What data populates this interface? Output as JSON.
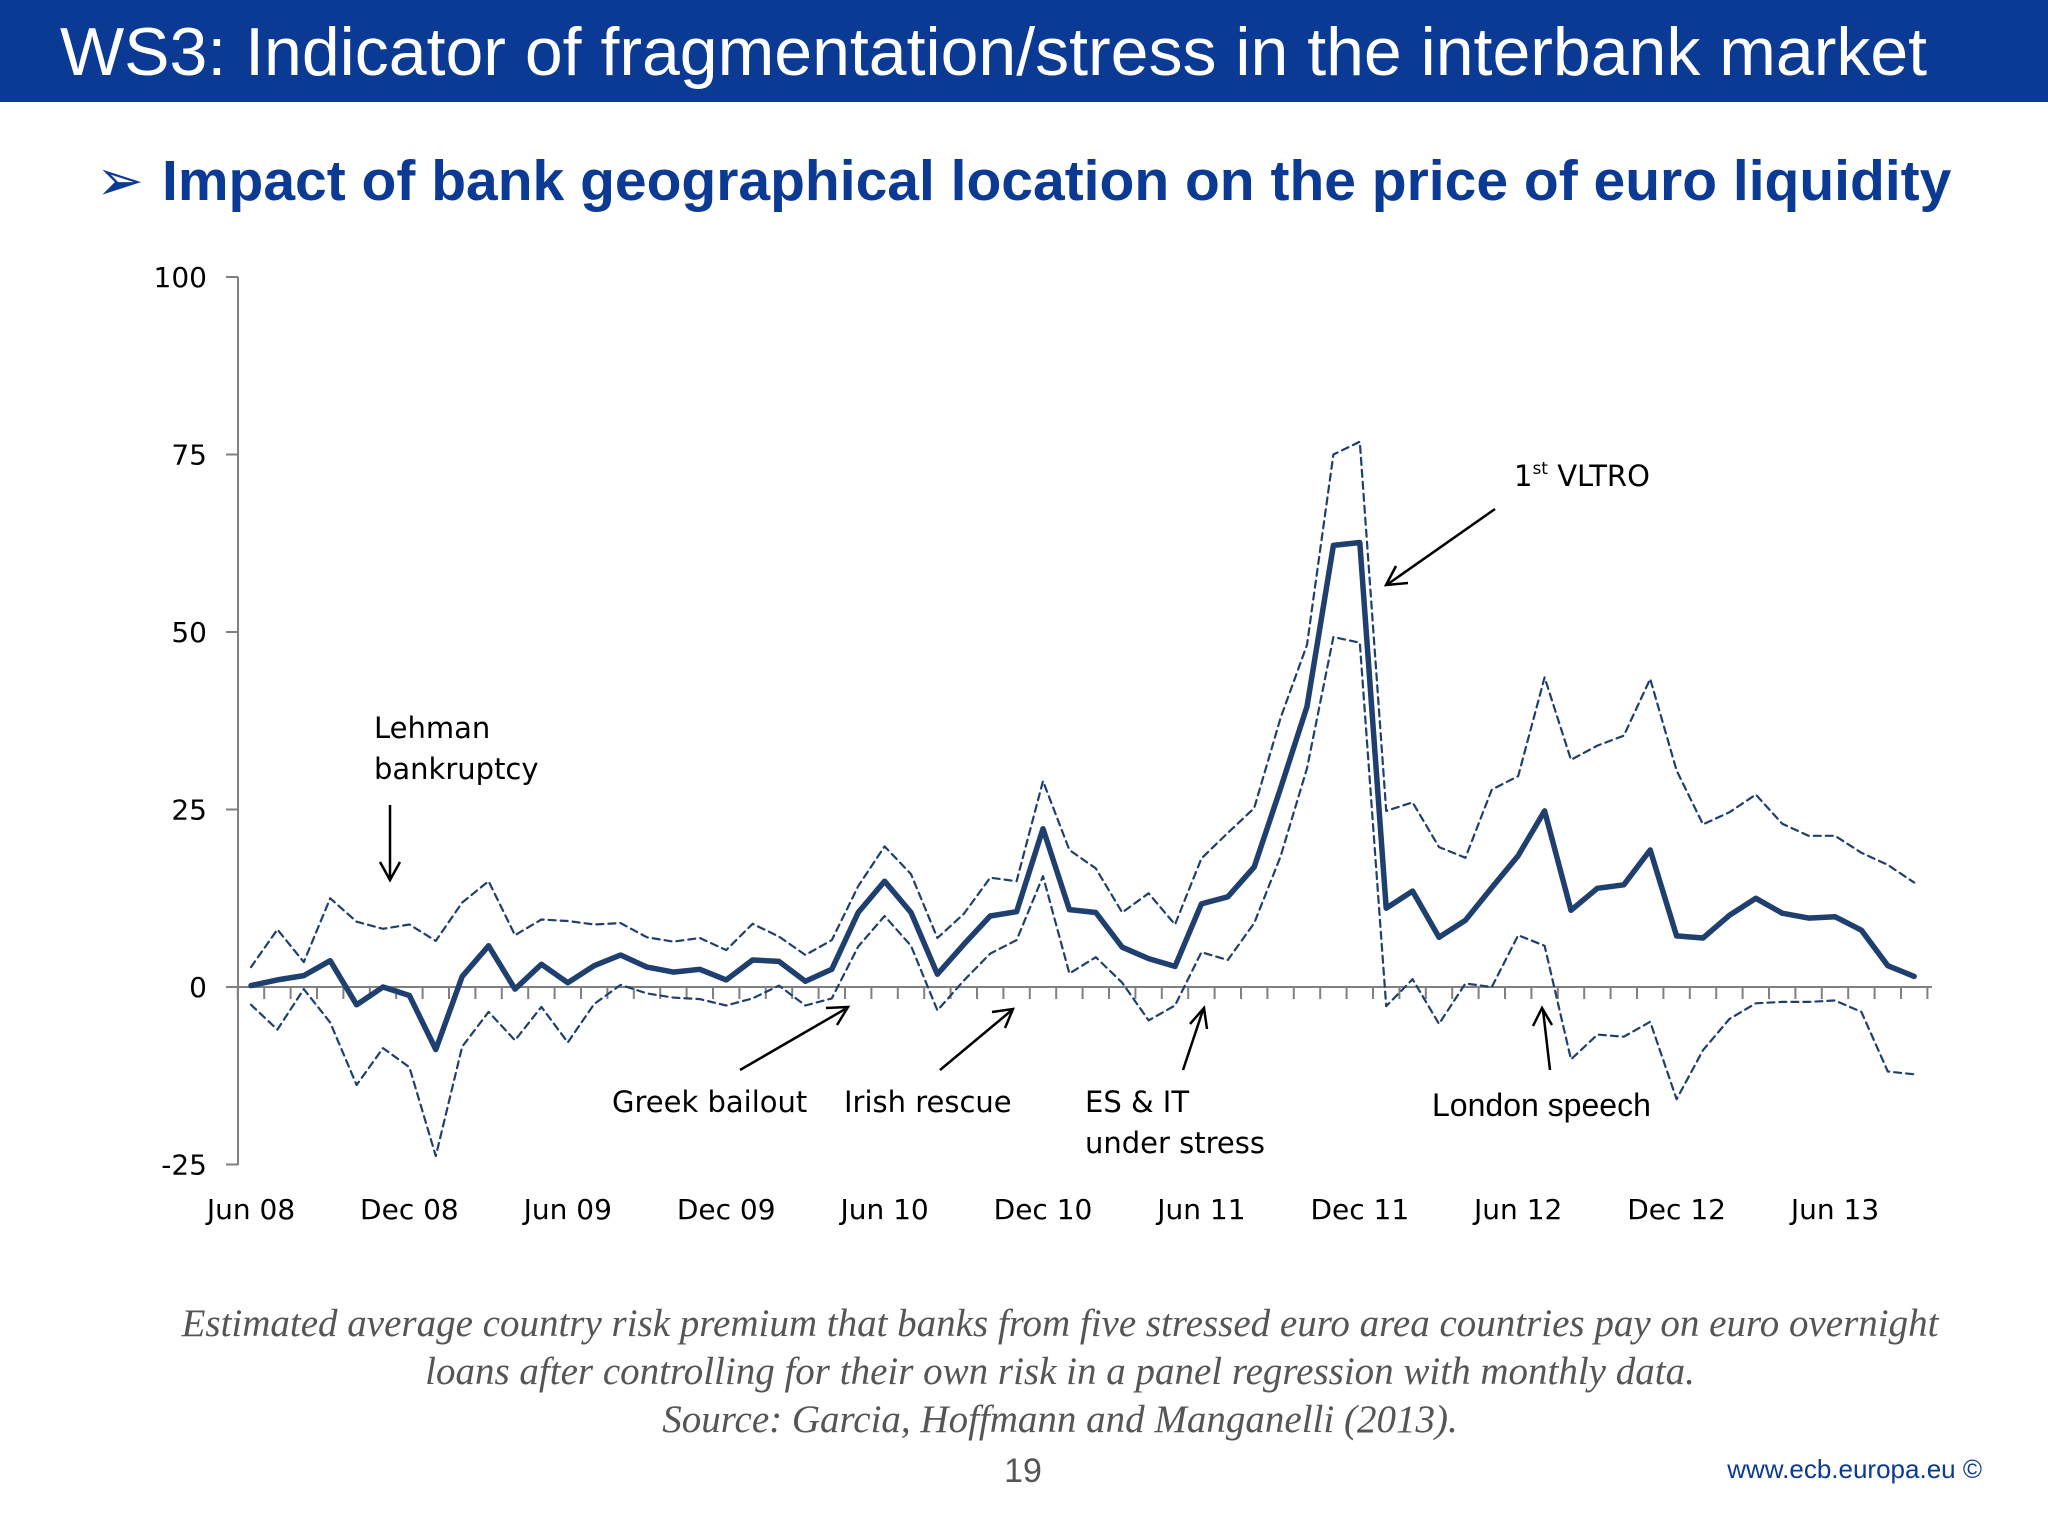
{
  "slide": {
    "title": "WS3: Indicator of fragmentation/stress in the interbank market",
    "subtitle_bullet": "➢",
    "subtitle": "Impact of bank geographical location on the price of euro liquidity",
    "caption_line1": "Estimated average country risk premium that banks from five stressed euro area countries pay on euro overnight",
    "caption_line2": "loans after controlling for their own risk in a panel regression with monthly data.",
    "caption_line3": "Source: Garcia, Hoffmann and Manganelli (2013).",
    "page_number": "19",
    "website": "www.ecb.europa.eu ©"
  },
  "colors": {
    "title_bar": "#0b3a94",
    "subtitle": "#0b3a94",
    "series": "#1f3f6e",
    "axis": "#808080"
  },
  "annotations": {
    "vltro_main": "1",
    "vltro_sup": "st",
    "vltro_rest": " VLTRO",
    "lehman_line1": "Lehman",
    "lehman_line2": "bankruptcy",
    "greek": "Greek bailout",
    "irish": "Irish rescue",
    "esit_line1": "ES & IT",
    "esit_line2": "under stress",
    "london": "London speech"
  },
  "chart_data": {
    "type": "line",
    "title": "",
    "xlabel": "",
    "ylabel": "",
    "ylim": [
      -25,
      100
    ],
    "yticks": [
      -25,
      0,
      25,
      50,
      75,
      100
    ],
    "ytick_labels": [
      "-25",
      "0",
      "25",
      "50",
      "75",
      "100"
    ],
    "x_start": "Jun 08",
    "x_frequency": "monthly",
    "xtick_labels": [
      "Jun 08",
      "Dec 08",
      "Jun 09",
      "Dec 09",
      "Jun 10",
      "Dec 10",
      "Jun 11",
      "Dec 11",
      "Jun 12",
      "Dec 12",
      "Jun 13"
    ],
    "xtick_month_index": [
      0,
      6,
      12,
      18,
      24,
      30,
      36,
      42,
      48,
      54,
      60
    ],
    "grid": false,
    "series": [
      {
        "style": "solid",
        "values": [
          0.2,
          1.0,
          1.6,
          3.7,
          -2.5,
          0.0,
          -1.2,
          -8.8,
          1.5,
          5.8,
          -0.3,
          3.2,
          0.6,
          3.0,
          4.5,
          2.8,
          2.1,
          2.5,
          1.0,
          3.8,
          3.6,
          0.8,
          2.5,
          10.5,
          14.9,
          10.5,
          1.8,
          6.0,
          10.0,
          10.6,
          22.3,
          10.9,
          10.5,
          5.6,
          4.0,
          2.9,
          11.7,
          12.7,
          16.9,
          28.0,
          39.5,
          62.2,
          62.6,
          11.1,
          13.5,
          7.0,
          9.4,
          14.0,
          18.5,
          24.8,
          10.8,
          13.9,
          14.4,
          19.3,
          7.2,
          6.9,
          10.1,
          12.5,
          10.4,
          9.7,
          9.9,
          8.0,
          3.0,
          1.5
        ]
      },
      {
        "style": "dashed",
        "values": [
          2.8,
          8.1,
          3.5,
          12.5,
          9.2,
          8.2,
          8.8,
          6.5,
          11.9,
          14.9,
          7.3,
          9.5,
          9.3,
          8.8,
          9.0,
          7.0,
          6.4,
          6.9,
          5.2,
          8.9,
          7.1,
          4.5,
          6.6,
          14.2,
          19.8,
          15.9,
          6.9,
          10.3,
          15.4,
          14.9,
          29.0,
          19.3,
          16.7,
          10.5,
          13.2,
          8.8,
          18.1,
          21.7,
          25.2,
          37.9,
          48.2,
          75.0,
          76.8,
          24.8,
          26.0,
          19.7,
          18.2,
          27.8,
          29.7,
          43.6,
          32.0,
          34.0,
          35.4,
          43.4,
          30.5,
          22.9,
          24.6,
          27.1,
          23.0,
          21.3,
          21.3,
          18.9,
          17.2,
          14.7
        ]
      },
      {
        "style": "dashed",
        "values": [
          -2.5,
          -6.0,
          -0.3,
          -5.0,
          -13.8,
          -8.6,
          -11.3,
          -23.8,
          -8.4,
          -3.5,
          -7.5,
          -2.8,
          -7.8,
          -2.4,
          0.3,
          -0.9,
          -1.5,
          -1.7,
          -2.6,
          -1.6,
          0.2,
          -2.6,
          -1.6,
          5.7,
          10.0,
          5.8,
          -3.3,
          0.9,
          4.7,
          6.6,
          15.6,
          1.9,
          4.2,
          0.6,
          -4.7,
          -2.6,
          4.9,
          3.8,
          9.0,
          18.4,
          30.8,
          49.3,
          48.5,
          -2.7,
          1.1,
          -5.2,
          0.5,
          0.0,
          7.3,
          5.8,
          -10.2,
          -6.7,
          -7.0,
          -4.9,
          -15.8,
          -8.9,
          -4.5,
          -2.3,
          -2.1,
          -2.1,
          -1.9,
          -3.5,
          -11.9,
          -12.3
        ]
      }
    ]
  }
}
